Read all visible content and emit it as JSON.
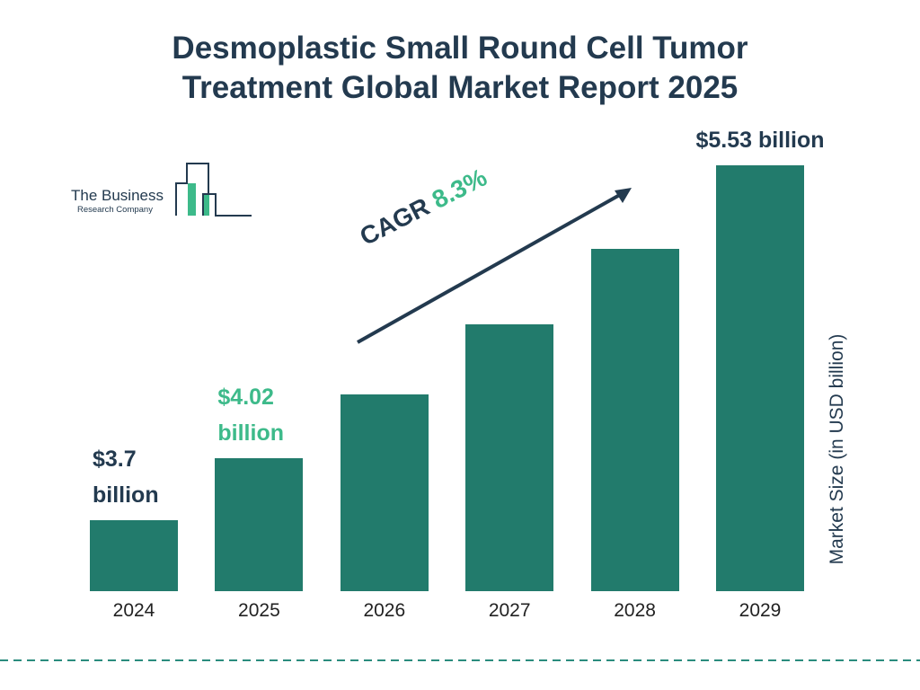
{
  "chart_data": {
    "type": "bar",
    "title": "Desmoplastic Small Round Cell Tumor Treatment Global Market Report 2025",
    "categories": [
      "2024",
      "2025",
      "2026",
      "2027",
      "2028",
      "2029"
    ],
    "values": [
      3.7,
      4.02,
      4.35,
      4.71,
      5.1,
      5.53
    ],
    "value_labels": [
      "$3.7 billion",
      "$4.02 billion",
      null,
      null,
      null,
      "$5.53 billion"
    ],
    "value_label_colors": [
      "#233a4f",
      "#3dba8a",
      null,
      null,
      null,
      "#233a4f"
    ],
    "color": "#227b6c",
    "y_axis_label": "Market Size (in USD billion)",
    "annotation": {
      "label": "CAGR",
      "value": "8.3%"
    },
    "logo": {
      "line1": "The Business",
      "line2": "Research Company"
    }
  }
}
